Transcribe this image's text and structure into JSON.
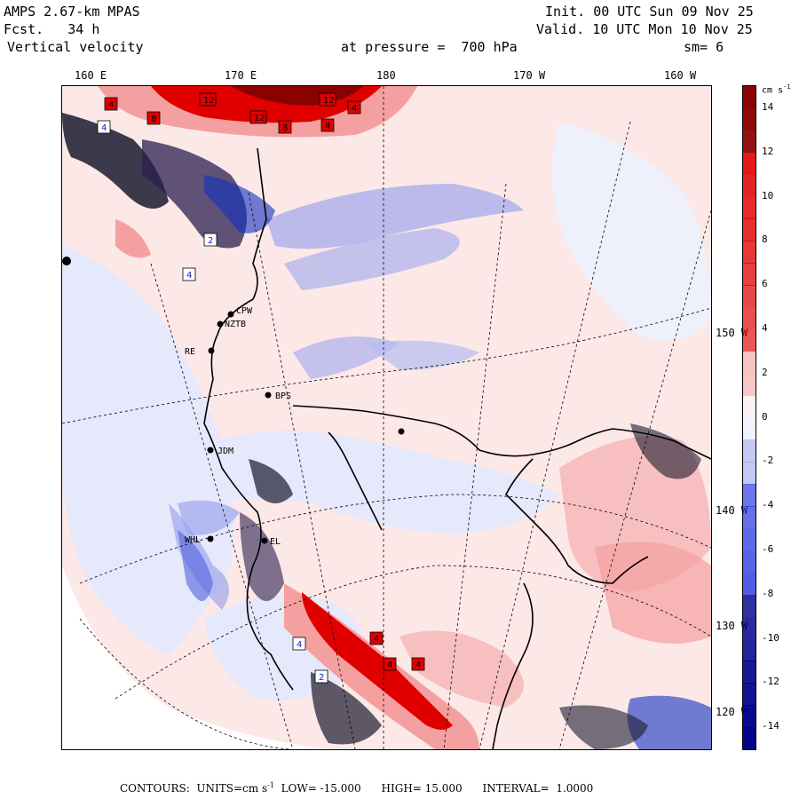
{
  "header": {
    "model": "AMPS 2.67-km MPAS",
    "forecast_label": "Fcst.",
    "forecast_value": "34 h",
    "variable": "Vertical velocity",
    "init_label": "Init.",
    "init_time": "00 UTC Sun 09 Nov 25",
    "valid_label": "Valid.",
    "valid_time": "10 UTC Mon 10 Nov 25",
    "level_text": "at pressure =  700 hPa",
    "smoothing": "sm= 6"
  },
  "map": {
    "longitude_ticks": [
      "160 E",
      "170 E",
      "180",
      "170 W",
      "160 W"
    ],
    "latitude_ticks": [
      "150 W",
      "140 W",
      "130 W",
      "120 W"
    ],
    "stations": [
      {
        "id": "CPW",
        "label": "CPW"
      },
      {
        "id": "NZTB",
        "label": "NZTB"
      },
      {
        "id": "RE",
        "label": "RE"
      },
      {
        "id": "BPS",
        "label": "BPS"
      },
      {
        "id": "JDM",
        "label": "JDM"
      },
      {
        "id": "WHL",
        "label": "WHL"
      },
      {
        "id": "EL",
        "label": "EL"
      }
    ],
    "contour_markers": [
      {
        "label": "4",
        "kind": "positive"
      },
      {
        "label": "12",
        "kind": "positive"
      },
      {
        "label": "8",
        "kind": "positive"
      },
      {
        "label": "12",
        "kind": "positive"
      },
      {
        "label": "12",
        "kind": "positive"
      },
      {
        "label": "8",
        "kind": "positive"
      },
      {
        "label": "4",
        "kind": "positive"
      },
      {
        "label": "4",
        "kind": "positive"
      },
      {
        "label": "4",
        "kind": "negative"
      },
      {
        "label": "2",
        "kind": "negative"
      },
      {
        "label": "4",
        "kind": "negative"
      },
      {
        "label": "4",
        "kind": "positive"
      },
      {
        "label": "4",
        "kind": "positive"
      },
      {
        "label": "4",
        "kind": "positive"
      },
      {
        "label": "4",
        "kind": "negative"
      },
      {
        "label": "2",
        "kind": "negative"
      }
    ]
  },
  "colorbar": {
    "unit_label": "cm s",
    "unit_exponent": "-1",
    "min": -15,
    "max": 15,
    "labels": [
      "14",
      "12",
      "10",
      "8",
      "6",
      "4",
      "2",
      "0",
      "-2",
      "-4",
      "-6",
      "-8",
      "-10",
      "-12",
      "-14"
    ],
    "colors": {
      "dark_red": "#8b0000",
      "red": "#e00000",
      "light_red": "#f5a0a0",
      "pale_pink": "#fde6e6",
      "pale_blue": "#e6e8fb",
      "light_blue": "#9ea6ec",
      "blue": "#2030e0",
      "dark_blue": "#00008b"
    }
  },
  "footer": {
    "contours_label": "CONTOURS:",
    "units_text": "UNITS=cm s",
    "units_exponent": "-1",
    "low_text": "LOW= -15.000",
    "high_text": "HIGH= 15.000",
    "interval_text": "INTERVAL=  1.0000"
  }
}
